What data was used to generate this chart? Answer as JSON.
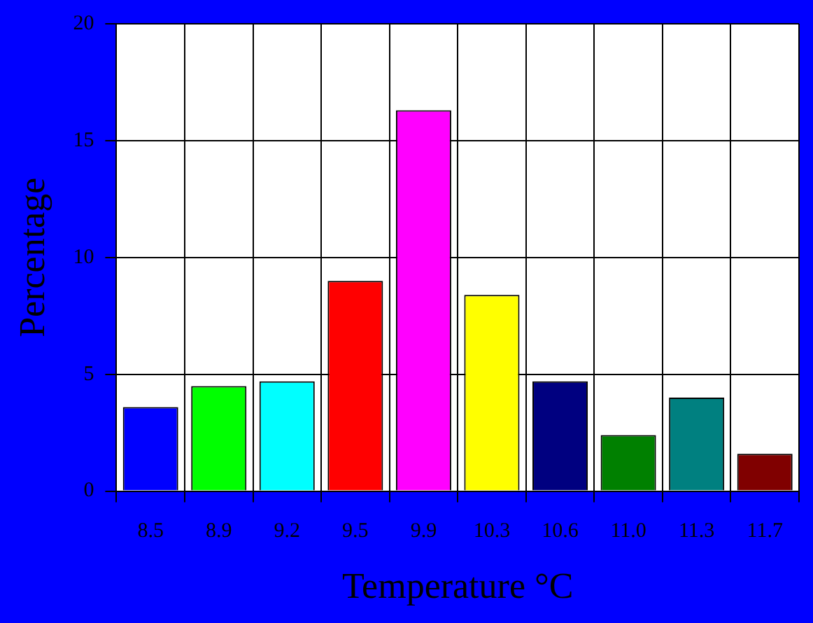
{
  "chart_data": {
    "type": "bar",
    "xlabel": "Temperature °C",
    "ylabel": "Percentage",
    "categories": [
      "8.5",
      "8.9",
      "9.2",
      "9.5",
      "9.9",
      "10.3",
      "10.6",
      "11.0",
      "11.3",
      "11.7"
    ],
    "values": [
      3.6,
      4.5,
      4.7,
      9.0,
      16.3,
      8.4,
      4.7,
      2.4,
      4.0,
      1.6
    ],
    "colors": [
      "#0000ff",
      "#00ff00",
      "#00ffff",
      "#ff0000",
      "#ff00ff",
      "#ffff00",
      "#000080",
      "#008000",
      "#008080",
      "#800000"
    ],
    "ylim": [
      0,
      20
    ],
    "yticks": [
      0,
      5,
      10,
      15,
      20
    ],
    "grid": true
  }
}
